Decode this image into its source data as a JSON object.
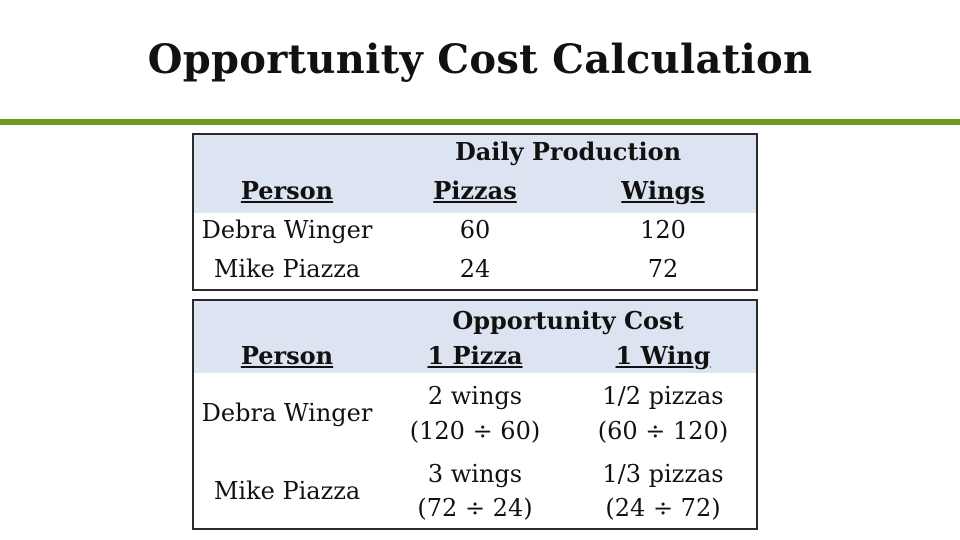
{
  "title": "Opportunity Cost Calculation",
  "colors": {
    "accent_rule": "#6e9a20",
    "header_fill": "#dbe4f0",
    "border": "#2a2a2a"
  },
  "production_table": {
    "group_header": "Daily Production",
    "col_person": "Person",
    "col_a": "Pizzas",
    "col_b": "Wings",
    "rows": [
      {
        "person": "Debra Winger",
        "a": "60",
        "b": "120"
      },
      {
        "person": "Mike Piazza",
        "a": "24",
        "b": "72"
      }
    ]
  },
  "cost_table": {
    "group_header": "Opportunity Cost",
    "col_person": "Person",
    "col_a": "1 Pizza",
    "col_b": "1 Wing",
    "rows": [
      {
        "person": "Debra Winger",
        "a_line1": "2 wings",
        "a_line2": "(120 ÷ 60)",
        "b_line1": "1/2 pizzas",
        "b_line2": "(60 ÷ 120)"
      },
      {
        "person": "Mike Piazza",
        "a_line1": "3 wings",
        "a_line2": "(72 ÷ 24)",
        "b_line1": "1/3 pizzas",
        "b_line2": "(24 ÷ 72)"
      }
    ]
  }
}
